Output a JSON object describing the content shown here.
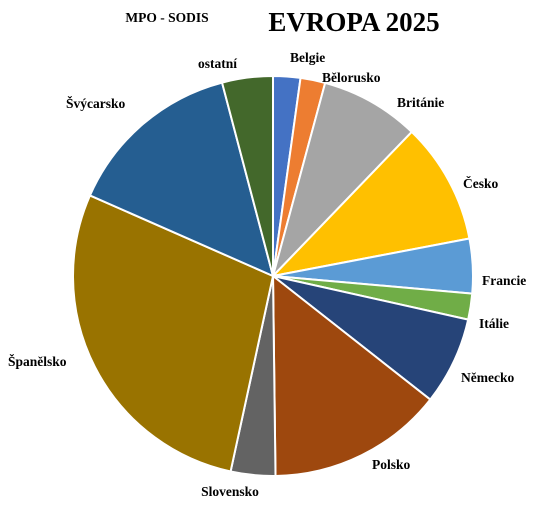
{
  "chart_data": {
    "type": "pie",
    "title": "EVROPA 2025",
    "subtitle": "MPO - SODIS",
    "start_angle_deg": 0,
    "direction": "clockwise",
    "slices": [
      {
        "label": "Belgie",
        "value": 2.2,
        "color": "#4472C4"
      },
      {
        "label": "Bělorusko",
        "value": 2.0,
        "color": "#ED7D31"
      },
      {
        "label": "Británie",
        "value": 8.0,
        "color": "#A5A5A5"
      },
      {
        "label": "Česko",
        "value": 9.8,
        "color": "#FFC000"
      },
      {
        "label": "Francie",
        "value": 4.4,
        "color": "#5B9BD5"
      },
      {
        "label": "Itálie",
        "value": 2.1,
        "color": "#70AD47"
      },
      {
        "label": "Německo",
        "value": 7.1,
        "color": "#264478"
      },
      {
        "label": "Polsko",
        "value": 14.2,
        "color": "#9E480E"
      },
      {
        "label": "Slovensko",
        "value": 3.6,
        "color": "#636363"
      },
      {
        "label": "Španělsko",
        "value": 28.2,
        "color": "#997300"
      },
      {
        "label": "Švýcarsko",
        "value": 14.3,
        "color": "#255E91"
      },
      {
        "label": "ostatní",
        "value": 4.1,
        "color": "#43682B"
      }
    ]
  }
}
